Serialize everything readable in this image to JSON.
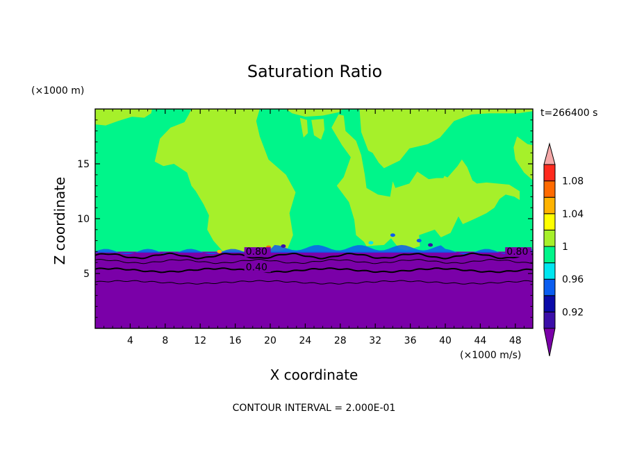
{
  "chart_data": {
    "type": "heatmap",
    "title": "Saturation Ratio",
    "xlabel": "X coordinate",
    "ylabel": "Z coordinate",
    "x_unit": "(×1000 m/s)",
    "y_unit": "(×1000 m)",
    "time_label": "t=266400 s",
    "contour_interval_text": "CONTOUR INTERVAL = 2.000E-01",
    "xlim": [
      0,
      50
    ],
    "ylim": [
      0,
      20
    ],
    "x_ticks": [
      4,
      8,
      12,
      16,
      20,
      24,
      28,
      32,
      36,
      40,
      44,
      48
    ],
    "y_ticks": [
      5,
      10,
      15
    ],
    "contour_labels": [
      {
        "text": "0.80",
        "x": 17.2,
        "z": 6.7
      },
      {
        "text": "0.40",
        "x": 17.2,
        "z": 5.3
      },
      {
        "text": "0.80",
        "x": 47.0,
        "z": 6.7
      }
    ],
    "colorbar": {
      "levels": [
        0.9,
        0.92,
        0.94,
        0.96,
        0.98,
        1.0,
        1.02,
        1.04,
        1.06,
        1.08,
        1.1
      ],
      "labels": [
        "0.92",
        "0.96",
        "1",
        "1.04",
        "1.08"
      ],
      "label_values": [
        0.92,
        0.96,
        1.0,
        1.04,
        1.08
      ],
      "colors": [
        "#3b0ea8",
        "#0a0aa8",
        "#0a5df0",
        "#00e6f0",
        "#00f58a",
        "#a6f02a",
        "#ffff00",
        "#ffb300",
        "#ff6a00",
        "#ff2a1e"
      ],
      "under_color": "#7a00a8",
      "over_color": "#f5a8a8"
    },
    "fields": {
      "lower_layer_top_z": 7.0,
      "lower_layer_value": 0.8,
      "upper_background_value": 0.99,
      "supersaturated_value": 1.01
    }
  }
}
